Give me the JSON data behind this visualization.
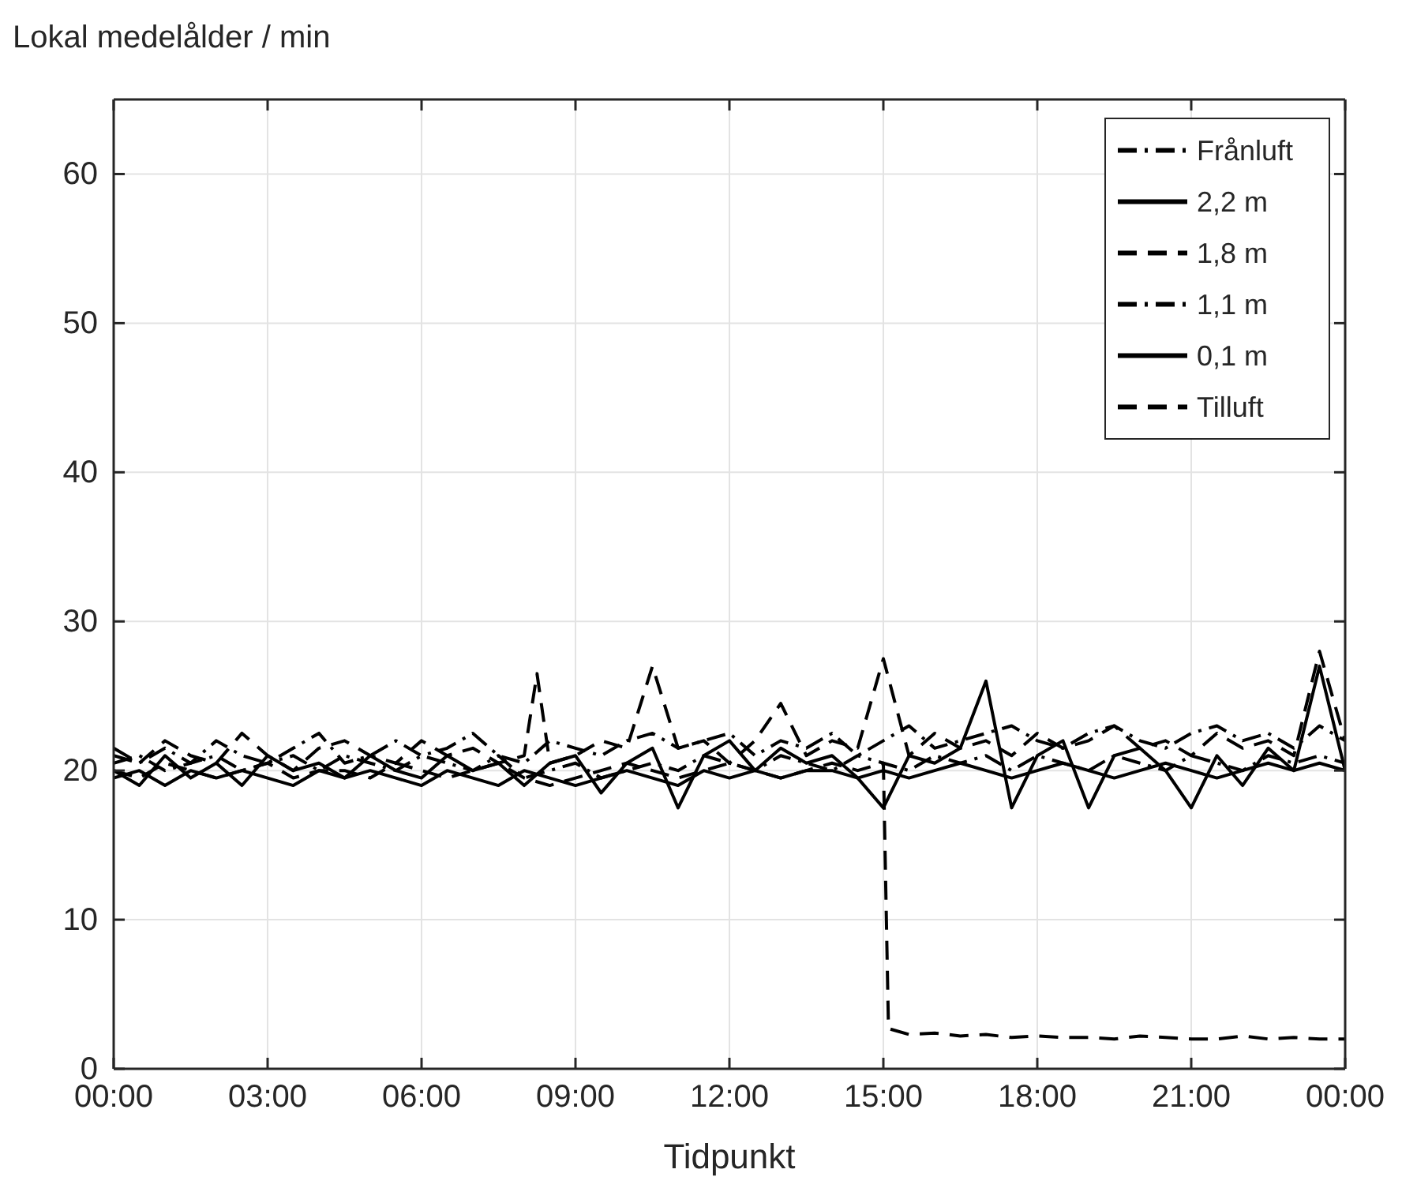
{
  "chart_data": {
    "type": "line",
    "ylabel": "Lokal medelålder / min",
    "xlabel": "Tidpunkt",
    "x": [
      0,
      0.5,
      1,
      1.5,
      2,
      2.5,
      3,
      3.5,
      4,
      4.5,
      5,
      5.5,
      6,
      6.5,
      7,
      7.5,
      8,
      8.5,
      9,
      9.5,
      10,
      10.5,
      11,
      11.5,
      12,
      12.5,
      13,
      13.5,
      14,
      14.5,
      15,
      15.5,
      16,
      16.5,
      17,
      17.5,
      18,
      18.5,
      19,
      19.5,
      20,
      20.5,
      21,
      21.5,
      22,
      22.5,
      23,
      23.5,
      24
    ],
    "xlim": [
      0,
      24
    ],
    "xticks": [
      {
        "value": 0,
        "label": "00:00"
      },
      {
        "value": 3,
        "label": "03:00"
      },
      {
        "value": 6,
        "label": "06:00"
      },
      {
        "value": 9,
        "label": "09:00"
      },
      {
        "value": 12,
        "label": "12:00"
      },
      {
        "value": 15,
        "label": "15:00"
      },
      {
        "value": 18,
        "label": "18:00"
      },
      {
        "value": 21,
        "label": "21:00"
      },
      {
        "value": 24,
        "label": "00:00"
      }
    ],
    "ylim": [
      0,
      65
    ],
    "yticks": [
      0,
      10,
      20,
      30,
      40,
      50,
      60
    ],
    "grid": true,
    "legend": "top right",
    "series": [
      {
        "name": "Frånluft",
        "color": "#000000",
        "line_style": "dashdot",
        "values": [
          21,
          20.5,
          21.5,
          20.5,
          22,
          21,
          20.5,
          21.5,
          22.5,
          20.5,
          21,
          22,
          21,
          21.5,
          22.5,
          21,
          20.5,
          22,
          21.5,
          21,
          22,
          22.5,
          21.5,
          22,
          22.5,
          21,
          22,
          21.5,
          22.5,
          21,
          22,
          23,
          21.5,
          22,
          22.5,
          23,
          22,
          21.5,
          22.5,
          23,
          22,
          21.5,
          22.5,
          23,
          22,
          22.5,
          21.5,
          23,
          22
        ]
      },
      {
        "name": "2,2 m",
        "color": "#000000",
        "line_style": "solid",
        "values": [
          20,
          19,
          21,
          19.5,
          20.5,
          19,
          21,
          20,
          20.5,
          19.5,
          21,
          20,
          19.5,
          21,
          20,
          20.5,
          19,
          20.5,
          21,
          18.5,
          20.5,
          21.5,
          17.5,
          21,
          22,
          20,
          21.5,
          20.5,
          21,
          19.5,
          17.5,
          21,
          20.5,
          21.5,
          26,
          17.5,
          21,
          22,
          17.5,
          21,
          21.5,
          20,
          17.5,
          21,
          19,
          21.5,
          20,
          27,
          20
        ]
      },
      {
        "name": "1,8 m",
        "color": "#000000",
        "line_style": "dashed",
        "x": [
          0,
          0.5,
          1,
          1.5,
          2,
          2.5,
          3,
          3.5,
          4,
          4.5,
          5,
          5.5,
          6,
          6.5,
          7,
          7.5,
          8,
          8.25,
          8.5,
          9,
          9.5,
          10,
          10.5,
          11,
          11.5,
          12,
          12.5,
          13,
          13.5,
          14,
          14.5,
          15,
          15.5,
          16,
          16.5,
          17,
          17.5,
          18,
          18.5,
          19,
          19.5,
          20,
          20.5,
          21,
          21.5,
          22,
          22.5,
          23,
          23.5,
          24
        ],
        "values": [
          21.5,
          20.5,
          22,
          21,
          20.5,
          22.5,
          21,
          20,
          21.5,
          22,
          21,
          20.5,
          22,
          21,
          21.5,
          20.5,
          21,
          26.5,
          20.5,
          21,
          22,
          21.5,
          27,
          21.5,
          22,
          20.5,
          22,
          24.5,
          21,
          22,
          21.5,
          27.5,
          21,
          22.5,
          21.5,
          22,
          21,
          22.5,
          21.5,
          22,
          23,
          21.5,
          22,
          21,
          22.5,
          21.5,
          22,
          21,
          28,
          22
        ]
      },
      {
        "name": "1,1 m",
        "color": "#000000",
        "line_style": "dashdot",
        "values": [
          20.5,
          21,
          20,
          20.5,
          21,
          20,
          20.5,
          21,
          20,
          21,
          20.5,
          20,
          21,
          20.5,
          20,
          21,
          19.5,
          20,
          20.5,
          19.5,
          20,
          20.5,
          20,
          21,
          20.5,
          20,
          21,
          20.5,
          20,
          21,
          20.5,
          20,
          21,
          20.5,
          21,
          20,
          21,
          20.5,
          20,
          21,
          20.5,
          20,
          21,
          20.5,
          20,
          21,
          20.5,
          21,
          20.5
        ]
      },
      {
        "name": "0,1 m",
        "color": "#000000",
        "line_style": "solid",
        "values": [
          19.5,
          20,
          19,
          20,
          19.5,
          20,
          19.5,
          19,
          20,
          19.5,
          20,
          19.5,
          19,
          20,
          19.5,
          19,
          20,
          19.5,
          19,
          19.5,
          20,
          19.5,
          19,
          20,
          19.5,
          20,
          19.5,
          20,
          20,
          19.5,
          20,
          19.5,
          20,
          20.5,
          20,
          19.5,
          20,
          20.5,
          20,
          19.5,
          20,
          20.5,
          20,
          19.5,
          20,
          20.5,
          20,
          20.5,
          20
        ]
      },
      {
        "name": "Tilluft",
        "color": "#000000",
        "line_style": "dashed",
        "x": [
          0,
          0.5,
          1,
          1.5,
          2,
          2.5,
          3,
          3.5,
          4,
          4.5,
          5,
          5.5,
          6,
          6.5,
          7,
          7.5,
          8,
          8.5,
          9,
          9.5,
          10,
          10.5,
          11,
          11.5,
          12,
          12.5,
          13,
          13.5,
          14,
          14.5,
          15,
          15.1,
          15.5,
          16,
          16.5,
          17,
          17.5,
          18,
          18.5,
          19,
          19.5,
          20,
          20.5,
          21,
          21.5,
          22,
          22.5,
          23,
          23.5,
          24
        ],
        "values": [
          20,
          19.5,
          20.5,
          20,
          19.5,
          20,
          20.5,
          19.5,
          20,
          20,
          19.5,
          20.5,
          20,
          19.5,
          20,
          20.5,
          19.5,
          19,
          19.5,
          20,
          20.5,
          20,
          19.5,
          20,
          20.5,
          20,
          19.5,
          20,
          20.5,
          20,
          20.5,
          2.7,
          2.3,
          2.4,
          2.2,
          2.3,
          2.1,
          2.2,
          2.1,
          2.1,
          2,
          2.2,
          2.1,
          2,
          2,
          2.2,
          2,
          2.1,
          2,
          2
        ]
      }
    ]
  }
}
